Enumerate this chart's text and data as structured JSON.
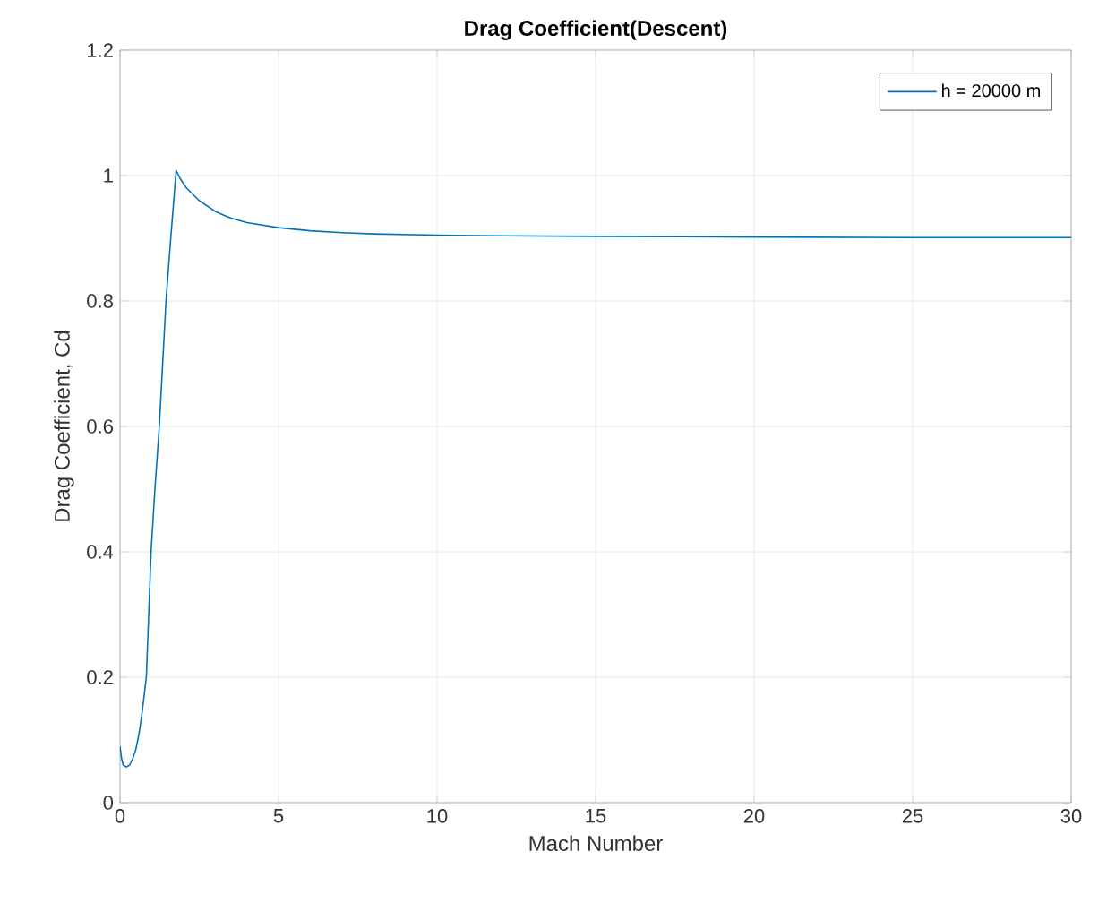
{
  "chart_data": {
    "type": "line",
    "title": "Drag Coefficient(Descent)",
    "xlabel": "Mach Number",
    "ylabel": "Drag Coefficient, Cd",
    "series": [
      {
        "name": "h = 20000 m",
        "color": "#0072bd",
        "x": [
          0,
          0.05,
          0.1,
          0.2,
          0.3,
          0.4,
          0.5,
          0.6,
          0.7,
          0.83,
          0.98,
          1.1,
          1.24,
          1.45,
          1.6,
          1.77,
          1.9,
          2.1,
          2.5,
          3,
          3.5,
          4,
          5,
          6,
          7,
          8,
          10,
          12,
          15,
          20,
          25,
          30
        ],
        "values": [
          0.09,
          0.07,
          0.06,
          0.057,
          0.06,
          0.07,
          0.085,
          0.11,
          0.145,
          0.2,
          0.4,
          0.5,
          0.6,
          0.8,
          0.9,
          1.008,
          0.995,
          0.98,
          0.96,
          0.943,
          0.932,
          0.925,
          0.917,
          0.912,
          0.909,
          0.907,
          0.905,
          0.904,
          0.903,
          0.902,
          0.901,
          0.901
        ]
      }
    ],
    "xlim": [
      0,
      30
    ],
    "ylim": [
      0,
      1.2
    ],
    "xticks": [
      0,
      5,
      10,
      15,
      20,
      25,
      30
    ],
    "yticks": [
      0,
      0.2,
      0.4,
      0.6,
      0.8,
      1,
      1.2
    ],
    "grid": true,
    "legend": "top right"
  }
}
